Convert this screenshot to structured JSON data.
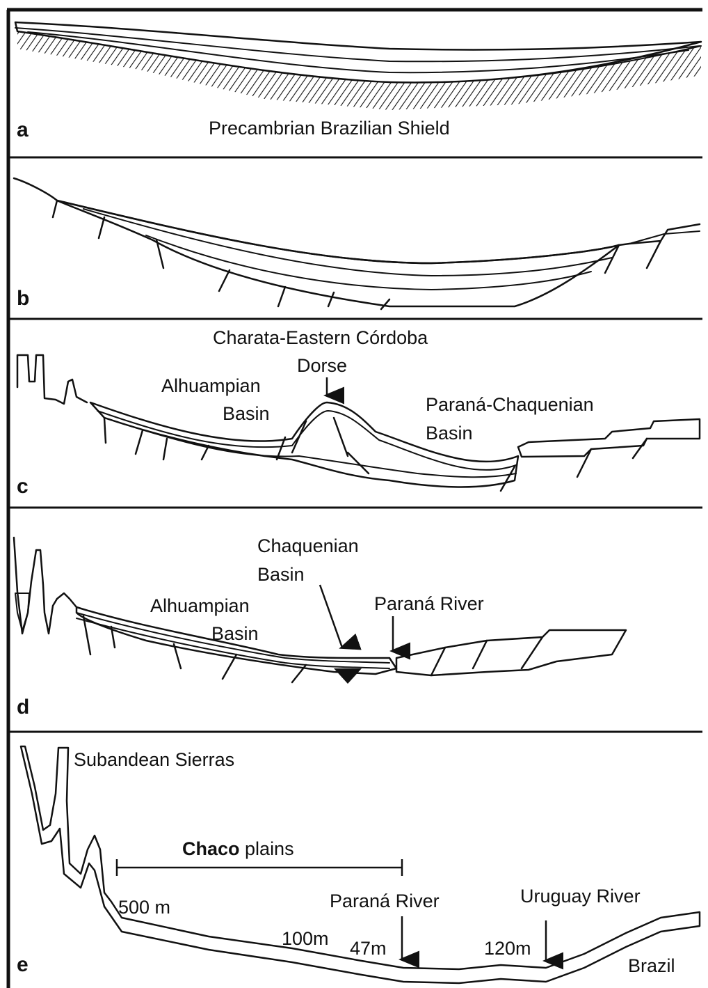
{
  "panels": {
    "a": {
      "letter": "a",
      "label": "Precambrian Brazilian Shield"
    },
    "b": {
      "letter": "b"
    },
    "c": {
      "letter": "c",
      "title": "Charata-Eastern Córdoba",
      "dorse": "Dorse",
      "alhuampian_1": "Alhuampian",
      "alhuampian_2": "Basin",
      "parana_chaq_1": "Paraná-Chaquenian",
      "parana_chaq_2": "Basin"
    },
    "d": {
      "letter": "d",
      "chaquenian_1": "Chaquenian",
      "chaquenian_2": "Basin",
      "alhuampian_1": "Alhuampian",
      "alhuampian_2": "Basin",
      "parana_river": "Paraná River"
    },
    "e": {
      "letter": "e",
      "subandean": "Subandean Sierras",
      "chaco_bold": "Chaco",
      "chaco_rest": " plains",
      "elev_500": "500 m",
      "elev_100": "100m",
      "elev_47": "47m",
      "elev_120": "120m",
      "parana_river": "Paraná River",
      "uruguay_river": "Uruguay River",
      "brazil": "Brazil"
    }
  }
}
